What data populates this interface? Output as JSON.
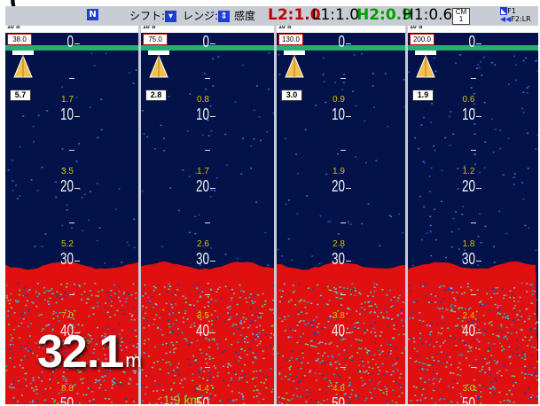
{
  "status_bar": {
    "north_label": "N",
    "shift_label": "シフト:",
    "range_label": "レンジ:",
    "sensitivity_label": "感度",
    "gain_l2": "L2:1.0",
    "gain_l1": "L1:1.0",
    "gain_h2": "H2:0.9",
    "gain_h1": "H1:0.6",
    "chip_label": "CM 1",
    "f1_label": "F1",
    "f2_label": "F2:LR"
  },
  "colors": {
    "l2": "#c00000",
    "h2": "#00a000",
    "accent": "#1e3cd8"
  },
  "panels": [
    {
      "range": "10 S",
      "value": "38.0",
      "speed": "5.7",
      "sub": [
        "1.7",
        "3.5",
        "5.2",
        "7.0",
        "8.8"
      ]
    },
    {
      "range": "10 S",
      "value": "75.0",
      "speed": "2.8",
      "sub": [
        "0.8",
        "1.7",
        "2.6",
        "3.5",
        "4.4"
      ]
    },
    {
      "range": "10 S",
      "value": "130.0",
      "speed": "3.0",
      "sub": [
        "0.9",
        "1.9",
        "2.8",
        "3.8",
        "4.8"
      ]
    },
    {
      "range": "10 S",
      "value": "200.0",
      "speed": "1.9",
      "sub": [
        "0.6",
        "1.2",
        "1.8",
        "2.4",
        "3.0"
      ]
    }
  ],
  "depth_scale": [
    "0",
    "10",
    "20",
    "30",
    "40",
    "50"
  ],
  "current_depth": {
    "value": "32.1",
    "unit": "m"
  },
  "distance": "1.9 km",
  "chart_data": {
    "type": "heatmap",
    "title": "",
    "xlabel": "",
    "ylabel": "",
    "ylim": [
      0,
      50
    ],
    "y_ticks": [
      0,
      10,
      20,
      30,
      40,
      50
    ],
    "bottom_depth_m": 32.1
  }
}
